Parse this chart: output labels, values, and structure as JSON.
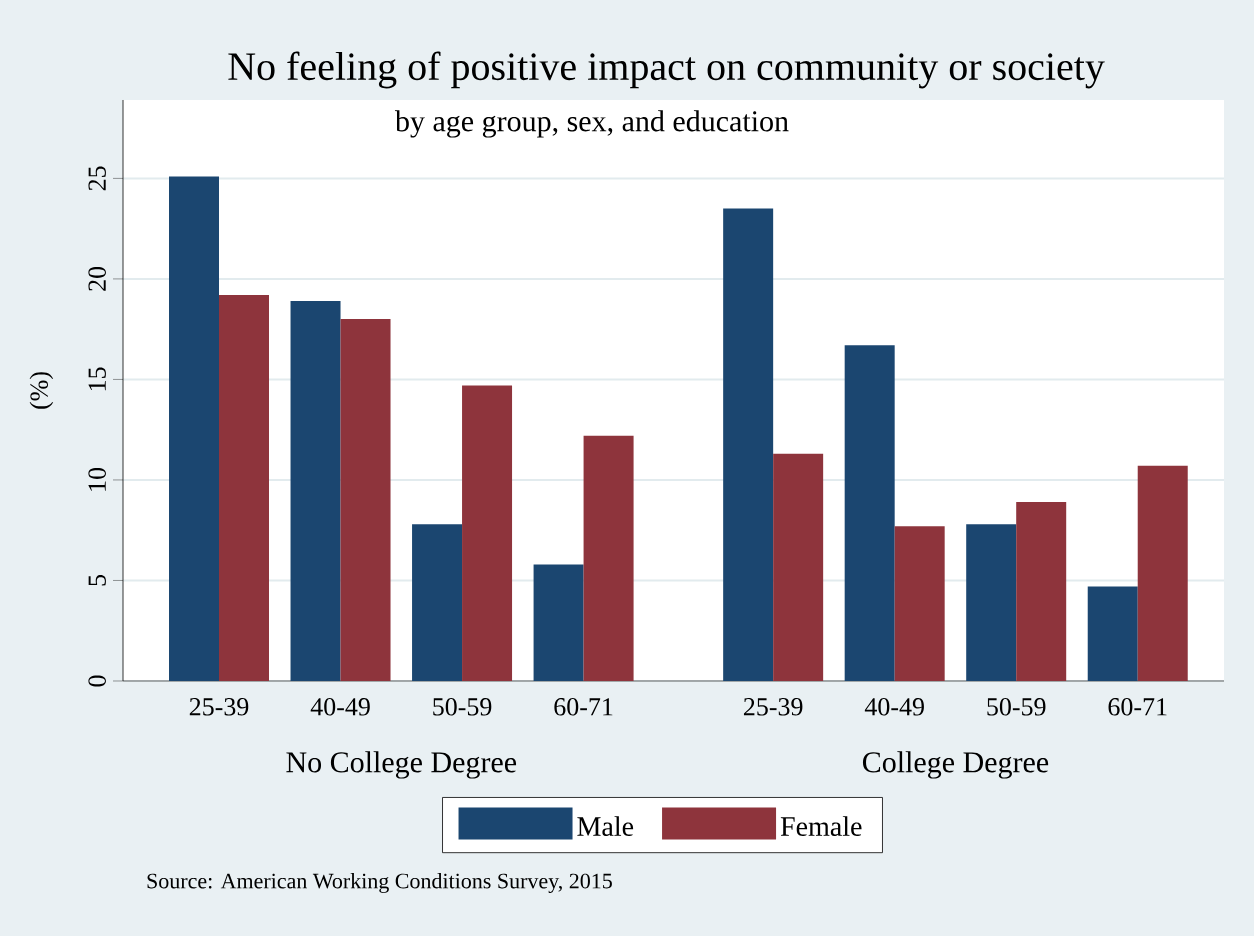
{
  "chart_data": {
    "type": "bar",
    "title": "No feeling of positive impact on community or society",
    "subtitle": "by age group, sex, and education",
    "ylabel": "(%)",
    "categories": [
      "25-39",
      "40-49",
      "50-59",
      "60-71",
      null,
      "25-39",
      "40-49",
      "50-59",
      "60-71"
    ],
    "series": [
      {
        "name": "Male",
        "color": "#1b4670",
        "values": [
          25.1,
          18.9,
          7.8,
          5.8,
          null,
          23.5,
          16.7,
          7.8,
          4.7
        ]
      },
      {
        "name": "Female",
        "color": "#8e343c",
        "values": [
          19.2,
          18.0,
          14.7,
          12.2,
          null,
          11.3,
          7.7,
          8.9,
          10.7
        ]
      }
    ],
    "ylim": [
      0,
      28.9
    ],
    "yticks": [
      0,
      5,
      10,
      15,
      20,
      25
    ],
    "grid": "y",
    "legend": "bottom",
    "annotations": [
      "No College Degree",
      "College Degree",
      "Source:  American Working Conditions Survey, 2015"
    ]
  }
}
